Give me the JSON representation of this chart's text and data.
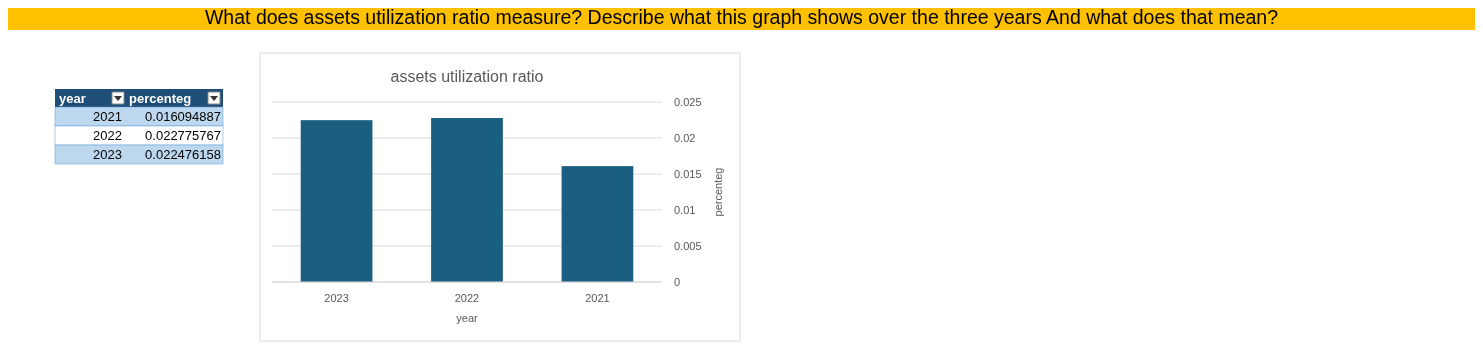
{
  "chart_data": {
    "type": "bar",
    "title": "assets utilization ratio",
    "xlabel": "year",
    "ylabel": "percenteg",
    "annotations": [
      "What does assets utilization ratio measure? Describe what this graph shows over the three years And what does that mean?",
      "2021",
      "0.016094887",
      "2022",
      "0.022775767",
      "2023",
      "0.022476158"
    ],
    "categories": [
      "2023",
      "2022",
      "2021"
    ],
    "values": [
      0.022476158,
      0.022775767,
      0.016094887
    ],
    "color": "#1a5f82",
    "ylim": [
      0,
      0.025
    ],
    "yticks": [
      0,
      0.005,
      0.01,
      0.015,
      0.02,
      0.025
    ],
    "grid": "y"
  }
}
